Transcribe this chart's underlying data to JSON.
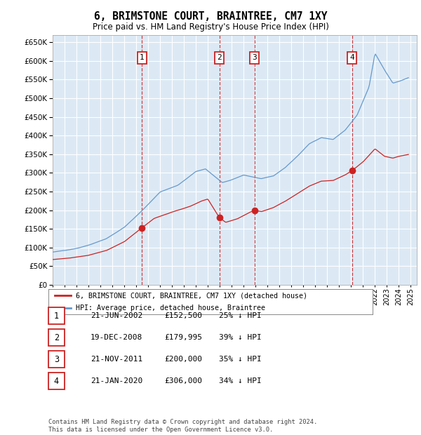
{
  "title": "6, BRIMSTONE COURT, BRAINTREE, CM7 1XY",
  "subtitle": "Price paid vs. HM Land Registry's House Price Index (HPI)",
  "background_color": "#dce9f5",
  "grid_color": "#ffffff",
  "ylim": [
    0,
    670000
  ],
  "yticks": [
    0,
    50000,
    100000,
    150000,
    200000,
    250000,
    300000,
    350000,
    400000,
    450000,
    500000,
    550000,
    600000,
    650000
  ],
  "hpi_color": "#6699cc",
  "price_color": "#cc2222",
  "annotation_box_color": "#cc2222",
  "sales": [
    {
      "num": "1",
      "year": 2002.47,
      "price": 152500
    },
    {
      "num": "2",
      "year": 2008.97,
      "price": 179995
    },
    {
      "num": "3",
      "year": 2011.9,
      "price": 200000
    },
    {
      "num": "4",
      "year": 2020.07,
      "price": 306000
    }
  ],
  "table_rows": [
    {
      "num": "1",
      "date": "21-JUN-2002",
      "price": "£152,500",
      "hpi": "25% ↓ HPI"
    },
    {
      "num": "2",
      "date": "19-DEC-2008",
      "price": "£179,995",
      "hpi": "39% ↓ HPI"
    },
    {
      "num": "3",
      "date": "21-NOV-2011",
      "price": "£200,000",
      "hpi": "35% ↓ HPI"
    },
    {
      "num": "4",
      "date": "21-JAN-2020",
      "price": "£306,000",
      "hpi": "34% ↓ HPI"
    }
  ],
  "legend_line1": "6, BRIMSTONE COURT, BRAINTREE, CM7 1XY (detached house)",
  "legend_line2": "HPI: Average price, detached house, Braintree",
  "footer": "Contains HM Land Registry data © Crown copyright and database right 2024.\nThis data is licensed under the Open Government Licence v3.0.",
  "xmin": 1995.0,
  "xmax": 2025.5
}
